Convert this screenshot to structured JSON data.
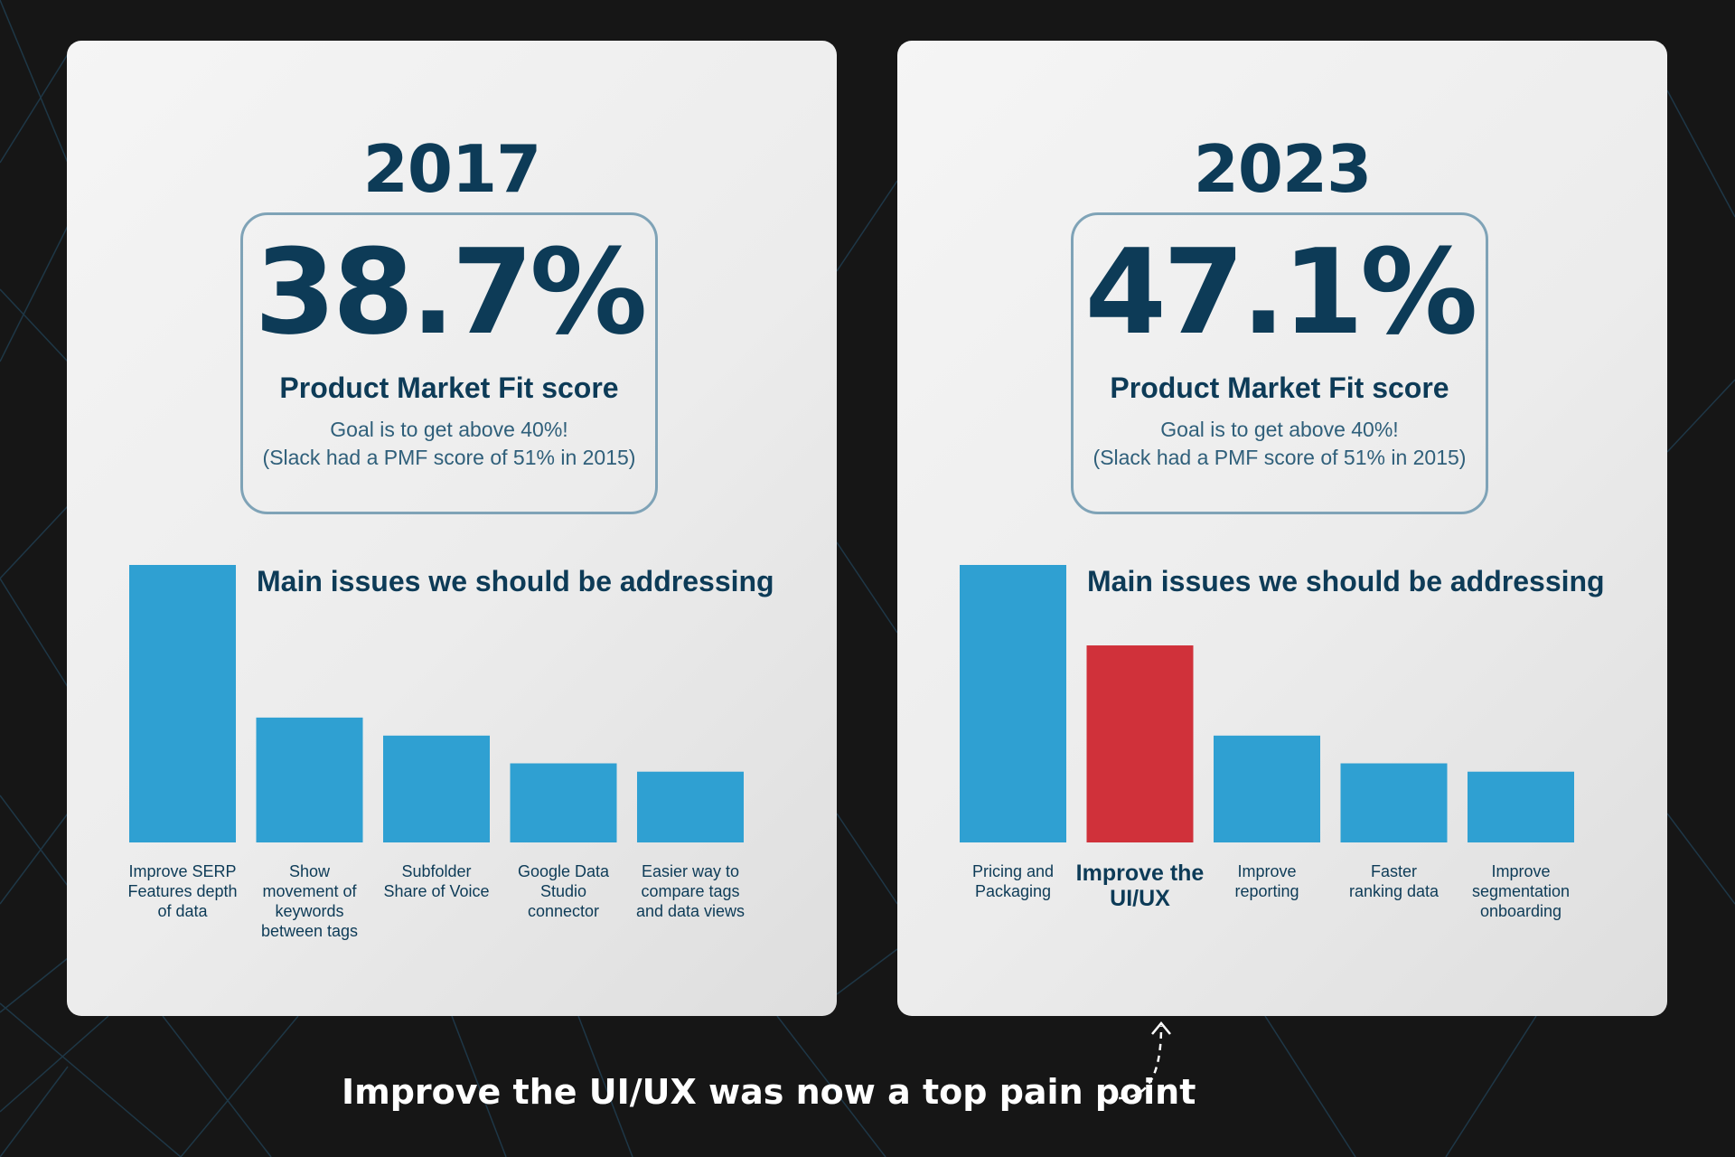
{
  "caption": "Improve the UI/UX was now a top pain point",
  "colors": {
    "bar_default": "#2fa0d2",
    "bar_highlight": "#d0313a",
    "text_dark": "#0d3b57",
    "background": "#161616"
  },
  "panels": [
    {
      "year": "2017",
      "score": "38.7%",
      "score_label": "Product Market Fit score",
      "goal_line1": "Goal is to get above 40%!",
      "goal_line2": "(Slack had a PMF score of 51% in 2015)",
      "issues_title": "Main issues we should be addressing"
    },
    {
      "year": "2023",
      "score": "47.1%",
      "score_label": "Product Market Fit score",
      "goal_line1": "Goal is to get above 40%!",
      "goal_line2": "(Slack had a PMF score of 51% in 2015)",
      "issues_title": "Main issues we should be addressing"
    }
  ],
  "chart_data": [
    {
      "type": "bar",
      "title": "Main issues we should be addressing",
      "categories": [
        [
          "Improve SERP",
          "Features depth",
          "of data"
        ],
        [
          "Show",
          "movement of",
          "keywords",
          "between tags"
        ],
        [
          "Subfolder",
          "Share of Voice"
        ],
        [
          "Google Data",
          "Studio",
          "connector"
        ],
        [
          "Easier way to",
          "compare tags",
          "and data views"
        ]
      ],
      "values": [
        100,
        45,
        38.5,
        28.5,
        25.5
      ],
      "highlight_index": -1,
      "ylim": [
        0,
        100
      ]
    },
    {
      "type": "bar",
      "title": "Main issues we should be addressing",
      "categories": [
        [
          "Pricing and",
          "Packaging"
        ],
        [
          "Improve the",
          "UI/UX"
        ],
        [
          "Improve",
          "reporting"
        ],
        [
          "Faster",
          "ranking data"
        ],
        [
          "Improve",
          "segmentation",
          "onboarding"
        ]
      ],
      "values": [
        100,
        71,
        38.5,
        28.5,
        25.5
      ],
      "highlight_index": 1,
      "ylim": [
        0,
        100
      ]
    }
  ]
}
